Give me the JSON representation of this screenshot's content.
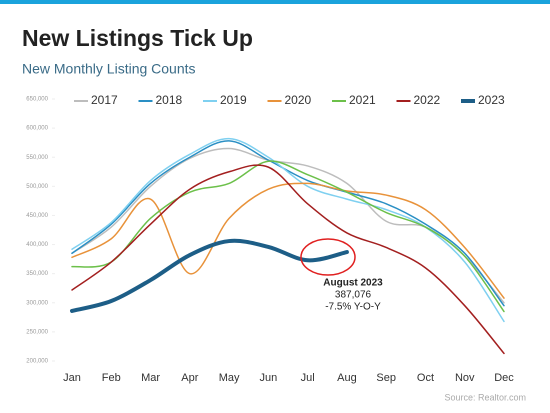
{
  "chart_data": {
    "type": "line",
    "title": "New Listings Tick Up",
    "subtitle": "New Monthly Listing Counts",
    "source": "Source: Realtor.com",
    "categories": [
      "Jan",
      "Feb",
      "Mar",
      "Apr",
      "May",
      "Jun",
      "Jul",
      "Aug",
      "Sep",
      "Oct",
      "Nov",
      "Dec"
    ],
    "ylim": [
      200000,
      650000
    ],
    "yticks": [
      {
        "value": 200000,
        "label": "200,000"
      },
      {
        "value": 250000,
        "label": "250,000"
      },
      {
        "value": 300000,
        "label": "300,000"
      },
      {
        "value": 350000,
        "label": "350,000"
      },
      {
        "value": 400000,
        "label": "400,000"
      },
      {
        "value": 450000,
        "label": "450,000"
      },
      {
        "value": 500000,
        "label": "500,000"
      },
      {
        "value": 550000,
        "label": "550,000"
      },
      {
        "value": 600000,
        "label": "600,000"
      },
      {
        "value": 650000,
        "label": "650,000"
      }
    ],
    "legend": "top",
    "series": [
      {
        "name": "2017",
        "color": "#bdbdbd",
        "values": [
          385000,
          430000,
          500000,
          548000,
          565000,
          545000,
          535000,
          505000,
          440000,
          430000,
          380000,
          300000
        ]
      },
      {
        "name": "2018",
        "color": "#2a8fc4",
        "values": [
          385000,
          435000,
          505000,
          550000,
          578000,
          545000,
          510000,
          490000,
          470000,
          435000,
          385000,
          295000
        ]
      },
      {
        "name": "2019",
        "color": "#7fd0f0",
        "values": [
          392000,
          438000,
          510000,
          555000,
          582000,
          550000,
          500000,
          478000,
          460000,
          430000,
          370000,
          268000
        ]
      },
      {
        "name": "2020",
        "color": "#e8923a",
        "values": [
          378000,
          410000,
          478000,
          350000,
          445000,
          495000,
          505000,
          492000,
          485000,
          460000,
          395000,
          308000
        ]
      },
      {
        "name": "2021",
        "color": "#6cc04a",
        "values": [
          362000,
          370000,
          445000,
          490000,
          505000,
          543000,
          520000,
          490000,
          455000,
          430000,
          380000,
          285000
        ]
      },
      {
        "name": "2022",
        "color": "#a31f1f",
        "values": [
          322000,
          370000,
          435000,
          495000,
          525000,
          533000,
          470000,
          420000,
          395000,
          360000,
          295000,
          213000
        ]
      },
      {
        "name": "2023",
        "color": "#1d5e87",
        "width": 4,
        "values": [
          286000,
          303000,
          339000,
          382000,
          406000,
          396000,
          373000,
          387076,
          null,
          null,
          null,
          null
        ]
      }
    ],
    "annotation": {
      "title": "August 2023",
      "value_label": "387,076",
      "note": "-7.5% Y-O-Y"
    }
  }
}
